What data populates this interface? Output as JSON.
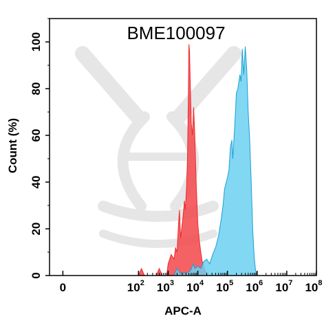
{
  "chart_data": {
    "type": "area",
    "title": "BME100097",
    "xlabel": "APC-A",
    "ylabel": "Count  (%)",
    "x_scale": "log",
    "xlim": [
      -1,
      8
    ],
    "ylim": [
      0,
      110
    ],
    "y_ticks": [
      0,
      20,
      40,
      60,
      80,
      100
    ],
    "x_ticks": [
      {
        "base": "0",
        "exp": ""
      },
      {
        "base": "10",
        "exp": "2"
      },
      {
        "base": "10",
        "exp": "3"
      },
      {
        "base": "10",
        "exp": "4"
      },
      {
        "base": "10",
        "exp": "5"
      },
      {
        "base": "10",
        "exp": "6"
      },
      {
        "base": "10",
        "exp": "7"
      },
      {
        "base": "10",
        "exp": "8"
      }
    ],
    "series": [
      {
        "color": "#f0292c",
        "fill": "#f2464b",
        "points": [
          [
            2.0,
            0
          ],
          [
            2.1,
            3
          ],
          [
            2.2,
            0
          ],
          [
            2.6,
            0
          ],
          [
            2.7,
            3
          ],
          [
            2.8,
            0
          ],
          [
            2.95,
            0
          ],
          [
            3.0,
            5
          ],
          [
            3.1,
            9
          ],
          [
            3.15,
            8
          ],
          [
            3.2,
            7
          ],
          [
            3.25,
            12
          ],
          [
            3.3,
            10
          ],
          [
            3.35,
            22
          ],
          [
            3.38,
            28
          ],
          [
            3.42,
            16
          ],
          [
            3.5,
            25
          ],
          [
            3.55,
            32
          ],
          [
            3.58,
            28
          ],
          [
            3.62,
            38
          ],
          [
            3.65,
            50
          ],
          [
            3.68,
            76
          ],
          [
            3.7,
            99
          ],
          [
            3.72,
            96
          ],
          [
            3.75,
            80
          ],
          [
            3.78,
            65
          ],
          [
            3.82,
            60
          ],
          [
            3.86,
            72
          ],
          [
            3.9,
            60
          ],
          [
            3.95,
            38
          ],
          [
            4.0,
            22
          ],
          [
            4.05,
            15
          ],
          [
            4.1,
            10
          ],
          [
            4.15,
            6
          ],
          [
            4.25,
            2
          ],
          [
            4.35,
            0
          ]
        ]
      },
      {
        "color": "#1a9fd3",
        "fill": "#6cd0f1",
        "points": [
          [
            3.2,
            0
          ],
          [
            3.3,
            3
          ],
          [
            3.4,
            1
          ],
          [
            3.6,
            1
          ],
          [
            3.75,
            2
          ],
          [
            3.85,
            5
          ],
          [
            3.9,
            3
          ],
          [
            4.0,
            4
          ],
          [
            4.1,
            3
          ],
          [
            4.2,
            6
          ],
          [
            4.3,
            7
          ],
          [
            4.4,
            5
          ],
          [
            4.5,
            9
          ],
          [
            4.6,
            12
          ],
          [
            4.7,
            17
          ],
          [
            4.8,
            25
          ],
          [
            4.85,
            30
          ],
          [
            4.9,
            37
          ],
          [
            5.0,
            42
          ],
          [
            5.05,
            45
          ],
          [
            5.1,
            55
          ],
          [
            5.15,
            58
          ],
          [
            5.18,
            50
          ],
          [
            5.25,
            65
          ],
          [
            5.3,
            78
          ],
          [
            5.35,
            80
          ],
          [
            5.42,
            86
          ],
          [
            5.46,
            83
          ],
          [
            5.5,
            97
          ],
          [
            5.55,
            86
          ],
          [
            5.6,
            98
          ],
          [
            5.65,
            88
          ],
          [
            5.7,
            70
          ],
          [
            5.75,
            58
          ],
          [
            5.8,
            40
          ],
          [
            5.85,
            20
          ],
          [
            5.9,
            8
          ],
          [
            5.95,
            2
          ],
          [
            6.0,
            0
          ]
        ]
      }
    ]
  }
}
